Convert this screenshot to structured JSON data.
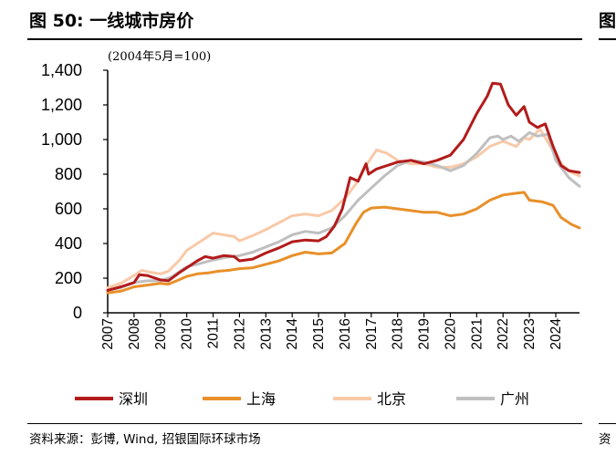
{
  "figure": {
    "title": "图 50: 一线城市房价",
    "index_note": "(2004年5月=100)",
    "source": "资料来源：彭博, Wind, 招银国际环球市场",
    "right_edge_title": "图",
    "right_edge_source": "资"
  },
  "chart_data": {
    "type": "line",
    "title": "一线城市房价",
    "xlabel": "",
    "ylabel": "",
    "ylim": [
      0,
      1400
    ],
    "xlim": [
      2007,
      2024.9
    ],
    "y_ticks": [
      0,
      200,
      400,
      600,
      800,
      1000,
      1200,
      1400
    ],
    "y_tick_labels": [
      "0",
      "200",
      "400",
      "600",
      "800",
      "1,000",
      "1,200",
      "1,400"
    ],
    "x_ticks": [
      2007,
      2008,
      2009,
      2010,
      2011,
      2012,
      2013,
      2014,
      2015,
      2016,
      2017,
      2018,
      2019,
      2020,
      2021,
      2022,
      2023,
      2024
    ],
    "x_tick_labels": [
      "2007",
      "2008",
      "2009",
      "2010",
      "2011",
      "2012",
      "2013",
      "2014",
      "2015",
      "2016",
      "2017",
      "2018",
      "2019",
      "2020",
      "2021",
      "2022",
      "2023",
      "2024"
    ],
    "grid": false,
    "legend_position": "bottom",
    "series": [
      {
        "name": "深圳",
        "color": "#b31b1b",
        "points": [
          [
            2007.0,
            130
          ],
          [
            2007.5,
            150
          ],
          [
            2008.0,
            175
          ],
          [
            2008.2,
            220
          ],
          [
            2008.5,
            215
          ],
          [
            2009.0,
            190
          ],
          [
            2009.3,
            185
          ],
          [
            2009.7,
            230
          ],
          [
            2010.0,
            260
          ],
          [
            2010.4,
            300
          ],
          [
            2010.7,
            325
          ],
          [
            2011.0,
            315
          ],
          [
            2011.4,
            330
          ],
          [
            2011.8,
            325
          ],
          [
            2012.0,
            300
          ],
          [
            2012.5,
            310
          ],
          [
            2013.0,
            345
          ],
          [
            2013.5,
            375
          ],
          [
            2014.0,
            410
          ],
          [
            2014.5,
            420
          ],
          [
            2015.0,
            415
          ],
          [
            2015.3,
            440
          ],
          [
            2015.6,
            500
          ],
          [
            2015.9,
            600
          ],
          [
            2016.2,
            780
          ],
          [
            2016.5,
            760
          ],
          [
            2016.8,
            860
          ],
          [
            2016.9,
            800
          ],
          [
            2017.2,
            830
          ],
          [
            2017.6,
            850
          ],
          [
            2018.0,
            870
          ],
          [
            2018.5,
            880
          ],
          [
            2019.0,
            860
          ],
          [
            2019.5,
            880
          ],
          [
            2020.0,
            910
          ],
          [
            2020.5,
            1000
          ],
          [
            2021.0,
            1150
          ],
          [
            2021.4,
            1250
          ],
          [
            2021.6,
            1325
          ],
          [
            2021.9,
            1320
          ],
          [
            2022.2,
            1200
          ],
          [
            2022.5,
            1140
          ],
          [
            2022.8,
            1190
          ],
          [
            2023.0,
            1100
          ],
          [
            2023.3,
            1070
          ],
          [
            2023.6,
            1090
          ],
          [
            2023.9,
            960
          ],
          [
            2024.2,
            850
          ],
          [
            2024.5,
            820
          ],
          [
            2024.9,
            810
          ]
        ]
      },
      {
        "name": "上海",
        "color": "#e8902a",
        "points": [
          [
            2007.0,
            115
          ],
          [
            2007.5,
            125
          ],
          [
            2008.0,
            150
          ],
          [
            2008.5,
            160
          ],
          [
            2009.0,
            170
          ],
          [
            2009.3,
            165
          ],
          [
            2009.7,
            190
          ],
          [
            2010.0,
            210
          ],
          [
            2010.4,
            225
          ],
          [
            2010.8,
            230
          ],
          [
            2011.2,
            240
          ],
          [
            2011.6,
            245
          ],
          [
            2012.0,
            255
          ],
          [
            2012.5,
            260
          ],
          [
            2013.0,
            280
          ],
          [
            2013.5,
            300
          ],
          [
            2014.0,
            330
          ],
          [
            2014.5,
            350
          ],
          [
            2015.0,
            340
          ],
          [
            2015.5,
            345
          ],
          [
            2016.0,
            400
          ],
          [
            2016.4,
            510
          ],
          [
            2016.7,
            580
          ],
          [
            2017.0,
            605
          ],
          [
            2017.5,
            610
          ],
          [
            2018.0,
            600
          ],
          [
            2018.5,
            590
          ],
          [
            2019.0,
            580
          ],
          [
            2019.5,
            580
          ],
          [
            2020.0,
            560
          ],
          [
            2020.5,
            570
          ],
          [
            2021.0,
            600
          ],
          [
            2021.5,
            650
          ],
          [
            2022.0,
            680
          ],
          [
            2022.5,
            690
          ],
          [
            2022.8,
            695
          ],
          [
            2023.0,
            650
          ],
          [
            2023.5,
            640
          ],
          [
            2023.9,
            620
          ],
          [
            2024.2,
            550
          ],
          [
            2024.6,
            510
          ],
          [
            2024.9,
            490
          ]
        ]
      },
      {
        "name": "北京",
        "color": "#f9c9a8",
        "points": [
          [
            2007.0,
            145
          ],
          [
            2007.5,
            170
          ],
          [
            2008.0,
            215
          ],
          [
            2008.3,
            245
          ],
          [
            2008.6,
            235
          ],
          [
            2009.0,
            225
          ],
          [
            2009.3,
            240
          ],
          [
            2009.7,
            300
          ],
          [
            2010.0,
            360
          ],
          [
            2010.4,
            400
          ],
          [
            2010.8,
            440
          ],
          [
            2011.0,
            460
          ],
          [
            2011.4,
            450
          ],
          [
            2011.8,
            440
          ],
          [
            2012.0,
            415
          ],
          [
            2012.5,
            445
          ],
          [
            2013.0,
            480
          ],
          [
            2013.5,
            520
          ],
          [
            2014.0,
            560
          ],
          [
            2014.5,
            570
          ],
          [
            2015.0,
            560
          ],
          [
            2015.5,
            590
          ],
          [
            2016.0,
            660
          ],
          [
            2016.5,
            760
          ],
          [
            2016.8,
            850
          ],
          [
            2017.2,
            940
          ],
          [
            2017.6,
            920
          ],
          [
            2018.0,
            880
          ],
          [
            2018.5,
            860
          ],
          [
            2019.0,
            860
          ],
          [
            2019.5,
            840
          ],
          [
            2020.0,
            840
          ],
          [
            2020.5,
            860
          ],
          [
            2021.0,
            900
          ],
          [
            2021.5,
            960
          ],
          [
            2022.0,
            990
          ],
          [
            2022.5,
            960
          ],
          [
            2022.8,
            1010
          ],
          [
            2023.0,
            1000
          ],
          [
            2023.4,
            1060
          ],
          [
            2023.8,
            960
          ],
          [
            2024.2,
            860
          ],
          [
            2024.6,
            810
          ],
          [
            2024.9,
            790
          ]
        ]
      },
      {
        "name": "广州",
        "color": "#bfbfbf",
        "points": [
          [
            2007.0,
            130
          ],
          [
            2007.5,
            145
          ],
          [
            2008.0,
            175
          ],
          [
            2008.5,
            185
          ],
          [
            2009.0,
            185
          ],
          [
            2009.4,
            205
          ],
          [
            2009.8,
            245
          ],
          [
            2010.0,
            265
          ],
          [
            2010.5,
            285
          ],
          [
            2011.0,
            305
          ],
          [
            2011.5,
            320
          ],
          [
            2012.0,
            330
          ],
          [
            2012.5,
            350
          ],
          [
            2013.0,
            380
          ],
          [
            2013.5,
            410
          ],
          [
            2014.0,
            450
          ],
          [
            2014.5,
            470
          ],
          [
            2015.0,
            460
          ],
          [
            2015.5,
            490
          ],
          [
            2016.0,
            560
          ],
          [
            2016.5,
            650
          ],
          [
            2017.0,
            720
          ],
          [
            2017.5,
            790
          ],
          [
            2018.0,
            850
          ],
          [
            2018.5,
            880
          ],
          [
            2019.0,
            870
          ],
          [
            2019.5,
            850
          ],
          [
            2020.0,
            820
          ],
          [
            2020.5,
            850
          ],
          [
            2021.0,
            920
          ],
          [
            2021.5,
            1010
          ],
          [
            2021.8,
            1020
          ],
          [
            2022.0,
            1000
          ],
          [
            2022.3,
            1020
          ],
          [
            2022.6,
            990
          ],
          [
            2023.0,
            1040
          ],
          [
            2023.3,
            1020
          ],
          [
            2023.7,
            1030
          ],
          [
            2024.0,
            880
          ],
          [
            2024.5,
            780
          ],
          [
            2024.9,
            730
          ]
        ]
      }
    ]
  }
}
